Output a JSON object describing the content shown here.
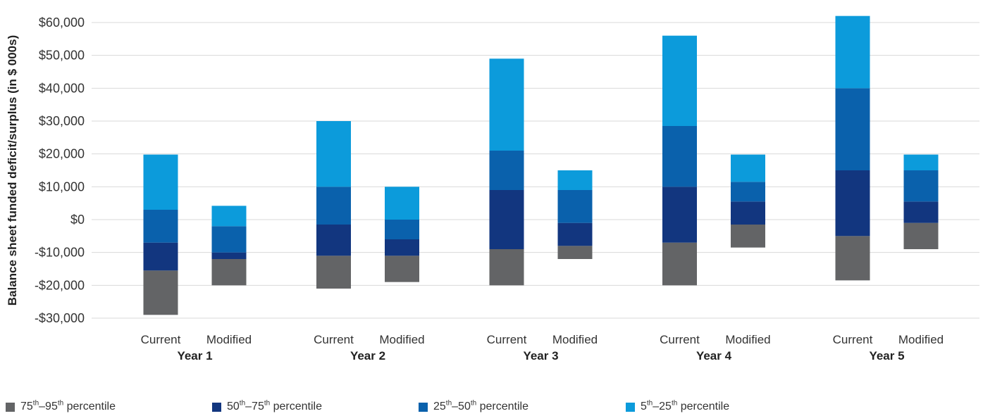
{
  "chart_data": {
    "type": "bar",
    "stacked": true,
    "ylabel": "Balance sheet funded deficit/surplus (in $ 000s)",
    "ylim": [
      -30000,
      60000
    ],
    "yticks": [
      -30000,
      -20000,
      -10000,
      0,
      10000,
      20000,
      30000,
      40000,
      50000,
      60000
    ],
    "ytick_labels": [
      "-$30,000",
      "-$20,000",
      "-$10,000",
      "$0",
      "$10,000",
      "$20,000",
      "$30,000",
      "$40,000",
      "$50,000",
      "$60,000"
    ],
    "grid": true,
    "legend_position": "bottom",
    "groups": [
      "Year 1",
      "Year 2",
      "Year 3",
      "Year 4",
      "Year 5"
    ],
    "categories": [
      "Current",
      "Modified"
    ],
    "bars": [
      {
        "group": "Year 1",
        "category": "Current",
        "levels": [
          -29000,
          -15500,
          -7000,
          3000,
          19800
        ]
      },
      {
        "group": "Year 1",
        "category": "Modified",
        "levels": [
          -20000,
          -12000,
          -10000,
          -2000,
          4200
        ]
      },
      {
        "group": "Year 2",
        "category": "Current",
        "levels": [
          -21000,
          -11000,
          -1500,
          10000,
          30000
        ]
      },
      {
        "group": "Year 2",
        "category": "Modified",
        "levels": [
          -19000,
          -11000,
          -6000,
          0,
          10000
        ]
      },
      {
        "group": "Year 3",
        "category": "Current",
        "levels": [
          -20000,
          -9000,
          9000,
          21000,
          49000
        ]
      },
      {
        "group": "Year 3",
        "category": "Modified",
        "levels": [
          -12000,
          -8000,
          -1000,
          9000,
          15000
        ]
      },
      {
        "group": "Year 4",
        "category": "Current",
        "levels": [
          -20000,
          -7000,
          10000,
          28500,
          56000
        ]
      },
      {
        "group": "Year 4",
        "category": "Modified",
        "levels": [
          -8500,
          -1500,
          5500,
          11500,
          19800
        ]
      },
      {
        "group": "Year 5",
        "category": "Current",
        "levels": [
          -18500,
          -5000,
          15000,
          40000,
          62000
        ]
      },
      {
        "group": "Year 5",
        "category": "Modified",
        "levels": [
          -9000,
          -1000,
          5500,
          15000,
          19800
        ]
      }
    ],
    "series": [
      {
        "name": "75th–95th percentile",
        "base": "75",
        "sup1": "th",
        "mid": "–95",
        "sup2": "th",
        "rest": " percentile",
        "color": "#636466"
      },
      {
        "name": "50th–75th percentile",
        "base": "50",
        "sup1": "th",
        "mid": "–75",
        "sup2": "th",
        "rest": " percentile",
        "color": "#12367f"
      },
      {
        "name": "25th–50th percentile",
        "base": "25",
        "sup1": "th",
        "mid": "–50",
        "sup2": "th",
        "rest": " percentile",
        "color": "#0a61ac"
      },
      {
        "name": "5th–25th percentile",
        "base": "5",
        "sup1": "th",
        "mid": "–25",
        "sup2": "th",
        "rest": " percentile",
        "color": "#0c9bdb"
      }
    ]
  }
}
